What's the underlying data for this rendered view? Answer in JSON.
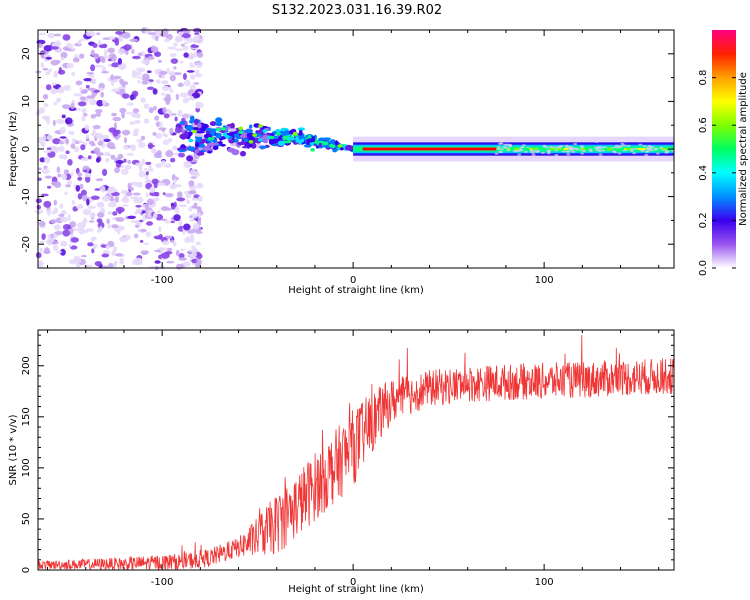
{
  "title": "S132.2023.031.16.39.R02",
  "colors": {
    "snr_line": "#f03535",
    "spectrogram_scatter": "#7a2de0",
    "colormap": [
      "#ffffff",
      "#d9c2f5",
      "#a070ee",
      "#6a1fe0",
      "#3a00f0",
      "#0078ff",
      "#00e0ff",
      "#00ff7f",
      "#7fff00",
      "#ffff00",
      "#ffa000",
      "#ff0000",
      "#ff0080"
    ]
  },
  "chart_data": [
    {
      "type": "heatmap",
      "name": "spectrogram",
      "xlabel": "Height of straight line (km)",
      "ylabel": "Frequency (Hz)",
      "xlim": [
        -165,
        168
      ],
      "ylim": [
        -25,
        25
      ],
      "xticks": [
        -100,
        0,
        100
      ],
      "yticks": [
        -20,
        -10,
        0,
        10,
        20
      ],
      "xtick_labels": [
        "-100",
        "0",
        "100"
      ],
      "ytick_labels": [
        "-20",
        "-10",
        "0",
        "10",
        "20"
      ],
      "colorbar": {
        "label": "Normalized spectral amplitude",
        "range": [
          0,
          1
        ],
        "ticks": [
          0.0,
          0.2,
          0.4,
          0.6,
          0.8
        ],
        "tick_labels": [
          "0.0",
          "0.2",
          "0.4",
          "0.6",
          "0.8"
        ]
      },
      "features": {
        "noise_region_x": [
          -165,
          -85
        ],
        "noise_freq_spread": [
          -25,
          25
        ],
        "transition_region_x": [
          -85,
          0
        ],
        "carrier_start_x": 0,
        "carrier_freq": 0,
        "carrier_peak_range_x": [
          5,
          75
        ],
        "carrier_peak_amplitude": 0.95,
        "carrier_tail_amplitude": 0.5
      }
    },
    {
      "type": "line",
      "name": "snr",
      "xlabel": "Height of straight line (km)",
      "ylabel": "SNR (10 * v/v)",
      "xlim": [
        -165,
        168
      ],
      "ylim": [
        0,
        235
      ],
      "xticks": [
        -100,
        0,
        100
      ],
      "yticks": [
        0,
        50,
        100,
        150,
        200
      ],
      "xtick_labels": [
        "-100",
        "0",
        "100"
      ],
      "ytick_labels": [
        "0",
        "50",
        "100",
        "150",
        "200"
      ],
      "trend_x": [
        -165,
        -120,
        -90,
        -75,
        -60,
        -50,
        -40,
        -30,
        -20,
        -10,
        0,
        10,
        20,
        30,
        40,
        60,
        80,
        100,
        120,
        140,
        168
      ],
      "trend_y": [
        5,
        6,
        8,
        12,
        22,
        32,
        45,
        62,
        82,
        100,
        120,
        145,
        165,
        172,
        178,
        182,
        184,
        185,
        186,
        188,
        190
      ],
      "noise_amp_x": [
        -165,
        -60,
        -40,
        0,
        20,
        40,
        168
      ],
      "noise_amp_y": [
        4,
        10,
        30,
        38,
        22,
        18,
        18
      ]
    }
  ]
}
